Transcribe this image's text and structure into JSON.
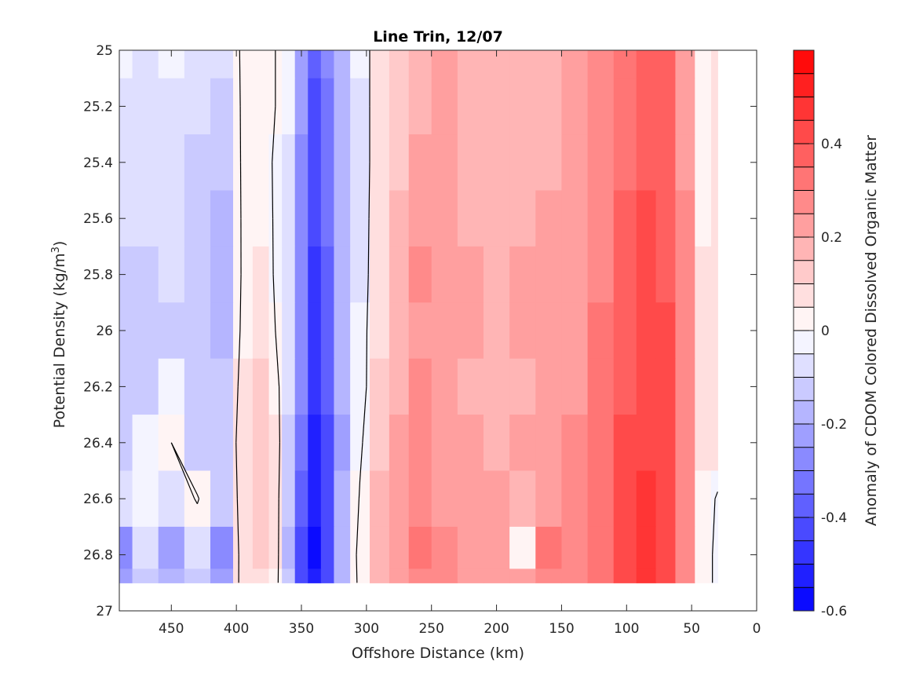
{
  "chart_data": {
    "type": "heatmap",
    "title": "Line Trin, 12/07",
    "xlabel": "Offshore Distance (km)",
    "ylabel_prefix": "Potential Density (kg/m",
    "ylabel_sup": "3",
    "ylabel_suffix": ")",
    "colorbar_label": "Anomaly of CDOM Colored Dissolved Organic Matter",
    "xlim": [
      490,
      0
    ],
    "x_reversed": true,
    "ylim": [
      25,
      27
    ],
    "y_reversed": true,
    "clim": [
      -0.6,
      0.6
    ],
    "colormap": "blue-white-red",
    "colors": {
      "neg": "#0000ff",
      "mid": "#ffffff",
      "pos": "#ff0000"
    },
    "xticks": [
      450,
      400,
      350,
      300,
      250,
      200,
      150,
      100,
      50,
      0
    ],
    "yticks": [
      25,
      25.2,
      25.4,
      25.6,
      25.8,
      26,
      26.2,
      26.4,
      26.6,
      26.8,
      27
    ],
    "cticks": [
      0.4,
      0.2,
      0,
      -0.2,
      -0.4,
      -0.6
    ],
    "grid": false,
    "data_extent": {
      "x": [
        490,
        30
      ],
      "y": [
        25,
        26.9
      ]
    },
    "distance_km": [
      490,
      470,
      450,
      430,
      410,
      395,
      380,
      370,
      360,
      350,
      340,
      330,
      320,
      305,
      290,
      275,
      260,
      240,
      220,
      200,
      180,
      160,
      140,
      120,
      100,
      85,
      70,
      55,
      40,
      30
    ],
    "density": [
      25.0,
      25.2,
      25.4,
      25.6,
      25.8,
      26.0,
      26.2,
      26.4,
      26.6,
      26.8,
      26.9
    ],
    "anomaly": [
      [
        -0.04,
        -0.06,
        -0.05,
        -0.07,
        -0.1,
        0.02,
        0.02,
        0.0,
        -0.05,
        -0.22,
        -0.38,
        -0.3,
        -0.16,
        -0.05,
        0.05,
        0.12,
        0.18,
        0.2,
        0.18,
        0.18,
        0.17,
        0.18,
        0.2,
        0.25,
        0.32,
        0.36,
        0.35,
        0.22,
        0.02,
        0.08
      ],
      [
        -0.06,
        -0.07,
        -0.06,
        -0.09,
        -0.13,
        0.02,
        0.03,
        0.0,
        -0.05,
        -0.24,
        -0.4,
        -0.32,
        -0.17,
        -0.06,
        0.06,
        0.13,
        0.19,
        0.21,
        0.19,
        0.16,
        0.18,
        0.19,
        0.21,
        0.26,
        0.33,
        0.37,
        0.36,
        0.23,
        0.02,
        0.07
      ],
      [
        -0.08,
        -0.09,
        -0.08,
        -0.11,
        -0.15,
        0.02,
        0.03,
        -0.01,
        -0.06,
        -0.26,
        -0.42,
        -0.34,
        -0.18,
        -0.06,
        0.06,
        0.14,
        0.22,
        0.22,
        0.18,
        0.17,
        0.19,
        0.19,
        0.21,
        0.27,
        0.34,
        0.38,
        0.37,
        0.24,
        0.03,
        0.05
      ],
      [
        -0.1,
        -0.1,
        -0.09,
        -0.12,
        -0.18,
        0.02,
        0.04,
        -0.01,
        -0.07,
        -0.27,
        -0.44,
        -0.35,
        -0.19,
        -0.06,
        0.07,
        0.15,
        0.24,
        0.23,
        0.19,
        0.17,
        0.19,
        0.2,
        0.22,
        0.28,
        0.36,
        0.4,
        0.38,
        0.25,
        0.04,
        0.06
      ],
      [
        -0.11,
        -0.11,
        -0.1,
        -0.13,
        -0.19,
        0.02,
        0.05,
        -0.01,
        -0.08,
        -0.28,
        -0.45,
        -0.36,
        -0.2,
        -0.06,
        0.08,
        0.16,
        0.25,
        0.24,
        0.2,
        0.18,
        0.2,
        0.21,
        0.23,
        0.29,
        0.38,
        0.42,
        0.39,
        0.26,
        0.05,
        0.07
      ],
      [
        -0.12,
        -0.13,
        -0.11,
        -0.13,
        -0.18,
        0.03,
        0.07,
        0.0,
        -0.08,
        -0.29,
        -0.46,
        -0.37,
        -0.2,
        -0.05,
        0.09,
        0.17,
        0.24,
        0.23,
        0.2,
        0.18,
        0.2,
        0.21,
        0.23,
        0.3,
        0.38,
        0.42,
        0.4,
        0.27,
        0.06,
        0.07
      ],
      [
        -0.13,
        -0.12,
        -0.05,
        -0.14,
        -0.15,
        0.05,
        0.1,
        0.04,
        -0.1,
        -0.3,
        -0.47,
        -0.38,
        -0.2,
        -0.05,
        0.1,
        0.18,
        0.25,
        0.22,
        0.18,
        0.16,
        0.18,
        0.21,
        0.24,
        0.31,
        0.39,
        0.43,
        0.4,
        0.27,
        0.07,
        0.08
      ],
      [
        -0.12,
        -0.04,
        0.0,
        -0.13,
        -0.13,
        0.07,
        0.12,
        0.06,
        -0.12,
        -0.34,
        -0.5,
        -0.4,
        -0.21,
        -0.02,
        0.13,
        0.2,
        0.26,
        0.24,
        0.21,
        0.19,
        0.21,
        0.23,
        0.26,
        0.32,
        0.4,
        0.44,
        0.4,
        0.27,
        0.08,
        0.07
      ],
      [
        -0.1,
        -0.02,
        -0.08,
        0.01,
        -0.15,
        0.06,
        0.11,
        0.05,
        -0.14,
        -0.38,
        -0.53,
        -0.42,
        -0.2,
        0.01,
        0.15,
        0.22,
        0.28,
        0.24,
        0.22,
        0.2,
        0.18,
        0.24,
        0.28,
        0.33,
        0.41,
        0.45,
        0.41,
        0.28,
        0.04,
        -0.01
      ],
      [
        -0.3,
        -0.1,
        -0.25,
        -0.1,
        -0.3,
        0.08,
        0.12,
        0.05,
        -0.16,
        -0.42,
        -0.55,
        -0.44,
        -0.18,
        0.04,
        0.17,
        0.22,
        0.3,
        0.26,
        0.24,
        0.24,
        0.0,
        0.3,
        0.27,
        0.34,
        0.43,
        0.48,
        0.43,
        0.29,
        0.03,
        -0.02
      ],
      [
        -0.22,
        -0.12,
        -0.2,
        -0.12,
        -0.22,
        0.06,
        0.08,
        0.04,
        -0.15,
        -0.4,
        -0.52,
        -0.42,
        -0.17,
        0.03,
        0.16,
        0.21,
        0.28,
        0.25,
        0.23,
        0.22,
        0.2,
        0.28,
        0.26,
        0.33,
        0.42,
        0.46,
        0.42,
        0.28,
        0.03,
        -0.02
      ]
    ],
    "contour_level": 0
  }
}
